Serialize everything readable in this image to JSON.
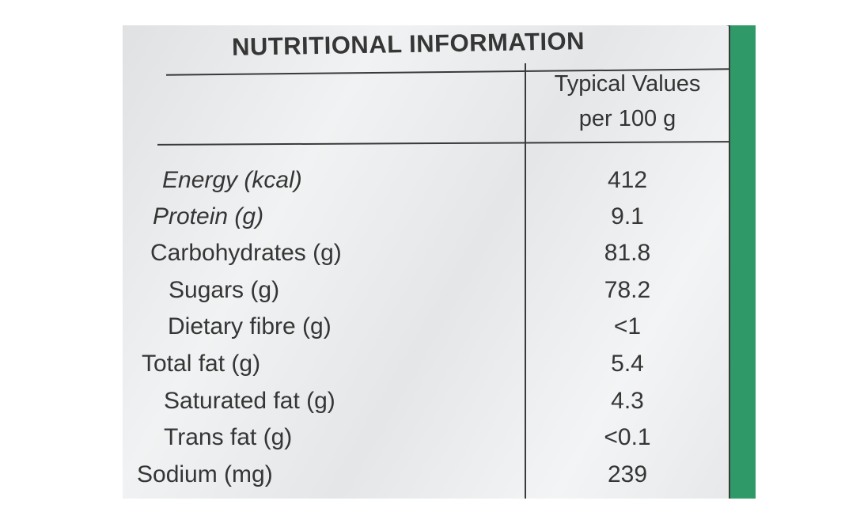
{
  "title": "NUTRITIONAL INFORMATION",
  "column_header": {
    "line1": "Typical Values",
    "line2": "per 100 g"
  },
  "rows": [
    {
      "name": "Energy (kcal)",
      "value": "412"
    },
    {
      "name": "Protein (g)",
      "value": "9.1"
    },
    {
      "name": "Carbohydrates (g)",
      "value": "81.8"
    },
    {
      "name": "Sugars (g)",
      "value": "78.2"
    },
    {
      "name": "Dietary fibre (g)",
      "value": "<1"
    },
    {
      "name": "Total fat (g)",
      "value": "5.4"
    },
    {
      "name": "Saturated fat (g)",
      "value": "4.3"
    },
    {
      "name": "Trans fat (g)",
      "value": "<0.1"
    },
    {
      "name": "Sodium (mg)",
      "value": "239"
    }
  ],
  "colors": {
    "packaging_green": "#2f9a68",
    "label_white": "#eef0f1",
    "ink": "#353535"
  }
}
